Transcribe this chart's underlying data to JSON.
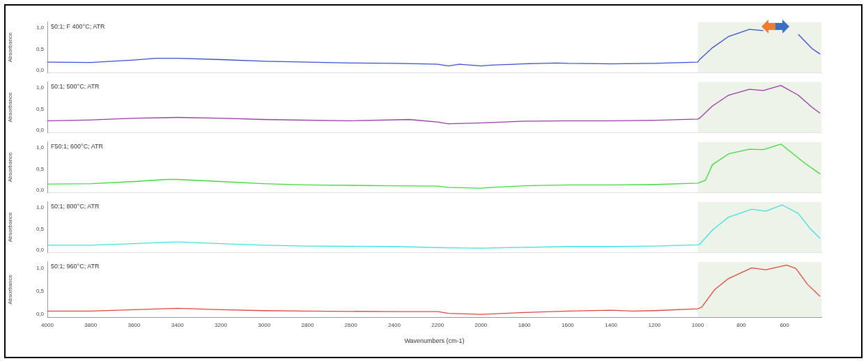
{
  "chart_data": [
    {
      "type": "line",
      "title": "50:1; F 400°C; ATR",
      "ylabel": "Absorbance",
      "tick_labels": "y",
      "grid": false,
      "marker": "none",
      "xlim": [
        4000,
        430
      ],
      "xticks": [
        4000,
        3800,
        3600,
        3400,
        3200,
        3000,
        2800,
        2600,
        2400,
        2200,
        2000,
        1800,
        1600,
        1400,
        1200,
        1000,
        800,
        600
      ],
      "ylim": [
        -0.06,
        1.14
      ],
      "yticks": [
        {
          "value": 0,
          "label": "0,0"
        },
        {
          "value": 0.5,
          "label": "0,5"
        },
        {
          "value": 1,
          "label": "1,0"
        }
      ],
      "bands": [
        {
          "axis": "x",
          "from": 1000,
          "to": 430,
          "color": "#edf3e8"
        }
      ],
      "x": [
        4000,
        3800,
        3600,
        3500,
        3400,
        3200,
        3000,
        2800,
        2600,
        2400,
        2200,
        2150,
        2100,
        2000,
        1950,
        1800,
        1650,
        1600,
        1400,
        1200,
        1000,
        992,
        933,
        858,
        762,
        698,
        623,
        601,
        537,
        473,
        436
      ],
      "series": [
        {
          "color": "#3a4fd0",
          "values": [
            0.19,
            0.18,
            0.24,
            0.28,
            0.28,
            0.25,
            0.21,
            0.19,
            0.17,
            0.16,
            0.14,
            0.1,
            0.14,
            0.1,
            0.12,
            0.15,
            0.17,
            0.16,
            0.15,
            0.16,
            0.19,
            0.25,
            0.53,
            0.8,
            0.97,
            0.94,
            null,
            null,
            0.85,
            0.51,
            0.38
          ]
        }
      ]
    },
    {
      "type": "line",
      "title": "50:1; 500°C; ATR",
      "ylabel": "Absorbance",
      "tick_labels": "y",
      "grid": false,
      "marker": "none",
      "xlim": [
        4000,
        430
      ],
      "xticks": [
        4000,
        3800,
        3600,
        3400,
        3200,
        3000,
        2800,
        2600,
        2400,
        2200,
        2000,
        1800,
        1600,
        1400,
        1200,
        1000,
        800,
        600
      ],
      "ylim": [
        -0.06,
        1.14
      ],
      "yticks": [
        {
          "value": 0,
          "label": "0,0"
        },
        {
          "value": 0.5,
          "label": "0,5"
        },
        {
          "value": 1,
          "label": "1,0"
        }
      ],
      "bands": [
        {
          "axis": "x",
          "from": 1000,
          "to": 430,
          "color": "#edf3e8"
        }
      ],
      "x": [
        4000,
        3800,
        3600,
        3400,
        3200,
        3000,
        2600,
        2330,
        2200,
        2150,
        2000,
        1800,
        1600,
        1400,
        1200,
        1000,
        992,
        933,
        858,
        762,
        698,
        617,
        537,
        473,
        436
      ],
      "series": [
        {
          "color": "#9b3aa8",
          "values": [
            0.22,
            0.24,
            0.28,
            0.3,
            0.28,
            0.25,
            0.22,
            0.25,
            0.19,
            0.15,
            0.17,
            0.21,
            0.22,
            0.22,
            0.23,
            0.26,
            0.28,
            0.57,
            0.83,
            0.97,
            0.94,
            1.06,
            0.83,
            0.54,
            0.4
          ]
        }
      ]
    },
    {
      "type": "line",
      "title": "F50:1; 600°C; ATR",
      "ylabel": "Absorbance",
      "tick_labels": "y",
      "grid": false,
      "marker": "none",
      "xlim": [
        4000,
        430
      ],
      "xticks": [
        4000,
        3800,
        3600,
        3400,
        3200,
        3000,
        2800,
        2600,
        2400,
        2200,
        2000,
        1800,
        1600,
        1400,
        1200,
        1000,
        800,
        600
      ],
      "ylim": [
        -0.06,
        1.14
      ],
      "yticks": [
        {
          "value": 0,
          "label": "0,0"
        },
        {
          "value": 0.5,
          "label": "0,5"
        },
        {
          "value": 1,
          "label": "1,0"
        }
      ],
      "bands": [
        {
          "axis": "x",
          "from": 1000,
          "to": 430,
          "color": "#edf3e8"
        }
      ],
      "x": [
        4000,
        3800,
        3600,
        3450,
        3400,
        3200,
        3000,
        2800,
        2400,
        2200,
        2150,
        2000,
        1950,
        1800,
        1600,
        1400,
        1200,
        1000,
        965,
        933,
        858,
        762,
        698,
        617,
        505,
        436
      ],
      "series": [
        {
          "color": "#3ddc3a",
          "values": [
            0.14,
            0.15,
            0.2,
            0.25,
            0.25,
            0.2,
            0.15,
            0.12,
            0.1,
            0.09,
            0.06,
            0.04,
            0.06,
            0.1,
            0.12,
            0.12,
            0.13,
            0.16,
            0.23,
            0.6,
            0.86,
            0.97,
            0.96,
            1.09,
            0.63,
            0.38
          ]
        }
      ]
    },
    {
      "type": "line",
      "title": "50:1; 800°C; ATR",
      "ylabel": "Absorbance",
      "tick_labels": "y",
      "grid": false,
      "marker": "none",
      "xlim": [
        4000,
        430
      ],
      "xticks": [
        4000,
        3800,
        3600,
        3400,
        3200,
        3000,
        2800,
        2600,
        2400,
        2200,
        2000,
        1800,
        1600,
        1400,
        1200,
        1000,
        800,
        600
      ],
      "ylim": [
        -0.06,
        1.14
      ],
      "yticks": [
        {
          "value": 0,
          "label": "0,0"
        },
        {
          "value": 0.5,
          "label": "0,5"
        },
        {
          "value": 1,
          "label": "1,0"
        }
      ],
      "bands": [
        {
          "axis": "x",
          "from": 1000,
          "to": 430,
          "color": "#edf3e8"
        }
      ],
      "x": [
        4000,
        3800,
        3600,
        3450,
        3400,
        3200,
        3000,
        2800,
        2400,
        2150,
        2000,
        1800,
        1600,
        1400,
        1200,
        1000,
        992,
        933,
        858,
        751,
        687,
        612,
        537,
        484,
        436
      ],
      "series": [
        {
          "color": "#3fe0e0",
          "values": [
            0.11,
            0.11,
            0.15,
            0.18,
            0.19,
            0.15,
            0.11,
            0.09,
            0.08,
            0.05,
            0.04,
            0.06,
            0.08,
            0.08,
            0.09,
            0.12,
            0.13,
            0.47,
            0.78,
            0.97,
            0.92,
            1.07,
            0.87,
            0.52,
            0.27
          ]
        }
      ]
    },
    {
      "type": "line",
      "title": "50:1; 960°C; ATR",
      "ylabel": "Absorbance",
      "xlabel": "Wavenumbers (cm-1)",
      "grid": false,
      "marker": "none",
      "xlim": [
        4000,
        430
      ],
      "xticks": [
        4000,
        3800,
        3600,
        3400,
        3200,
        3000,
        2800,
        2600,
        2400,
        2200,
        2000,
        1800,
        1600,
        1400,
        1200,
        1000,
        800,
        600
      ],
      "ylim": [
        -0.06,
        1.14
      ],
      "yticks": [
        {
          "value": 0,
          "label": "0,0"
        },
        {
          "value": 0.5,
          "label": "0,5"
        },
        {
          "value": 1,
          "label": "1,0"
        }
      ],
      "bands": [
        {
          "axis": "x",
          "from": 1000,
          "to": 430,
          "color": "#edf3e8"
        }
      ],
      "x": [
        4000,
        3800,
        3600,
        3400,
        3200,
        3000,
        2800,
        2400,
        2200,
        2150,
        2000,
        1800,
        1600,
        1400,
        1300,
        1200,
        1000,
        981,
        922,
        858,
        751,
        687,
        591,
        548,
        494,
        436
      ],
      "series": [
        {
          "color": "#e0463f",
          "values": [
            0.07,
            0.07,
            0.1,
            0.13,
            0.1,
            0.08,
            0.07,
            0.06,
            0.06,
            0.02,
            0.0,
            0.04,
            0.07,
            0.09,
            0.07,
            0.08,
            0.12,
            0.16,
            0.54,
            0.78,
            1.01,
            0.97,
            1.07,
            1.0,
            0.65,
            0.39
          ]
        }
      ]
    }
  ]
}
